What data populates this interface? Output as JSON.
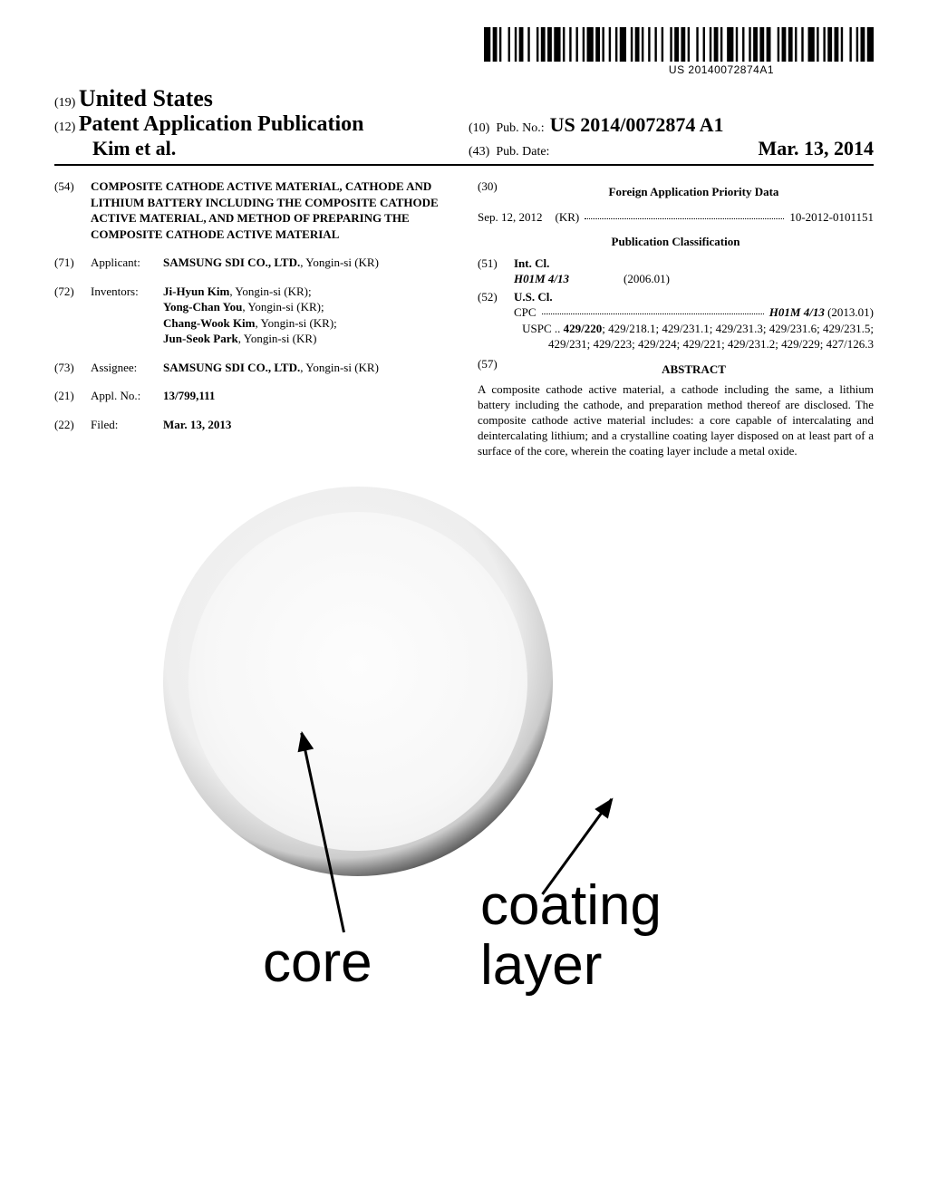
{
  "barcode": {
    "text": "US 20140072874A1",
    "bars": [
      3,
      1,
      2,
      1,
      1,
      3,
      1,
      2,
      1,
      1,
      2,
      2,
      1,
      3,
      1,
      1,
      2,
      1,
      2,
      1,
      3,
      1,
      1,
      2,
      1,
      2,
      1,
      2,
      1,
      1,
      3,
      1,
      2,
      1,
      1,
      2,
      1,
      2,
      1,
      1,
      3,
      2,
      1,
      1,
      2,
      1,
      1,
      2,
      1,
      2,
      1,
      2,
      1,
      3,
      1,
      1,
      2,
      1,
      2,
      1,
      1,
      3,
      1,
      2,
      1,
      2,
      1,
      1,
      2,
      1,
      1,
      2,
      3,
      1,
      1,
      2,
      1,
      2,
      1,
      1,
      2,
      1,
      2,
      1,
      2,
      3,
      1,
      1,
      2,
      1,
      2,
      1,
      1,
      2,
      1,
      2,
      3,
      1,
      1,
      2,
      1,
      1,
      2,
      1,
      2,
      1,
      1,
      3,
      1,
      2,
      1,
      1,
      2,
      1,
      3
    ]
  },
  "header": {
    "code19": "(19)",
    "country": "United States",
    "code12": "(12)",
    "doctype": "Patent Application Publication",
    "author": "Kim et al.",
    "code10": "(10)",
    "pubno_label": "Pub. No.:",
    "pubno": "US 2014/0072874 A1",
    "code43": "(43)",
    "pubdate_label": "Pub. Date:",
    "pubdate": "Mar. 13, 2014"
  },
  "left": {
    "f54": {
      "code": "(54)",
      "title": "COMPOSITE CATHODE ACTIVE MATERIAL, CATHODE AND LITHIUM BATTERY INCLUDING THE COMPOSITE CATHODE ACTIVE MATERIAL, AND METHOD OF PREPARING THE COMPOSITE CATHODE ACTIVE MATERIAL"
    },
    "f71": {
      "code": "(71)",
      "label": "Applicant:",
      "name": "SAMSUNG SDI CO., LTD.",
      "loc": ", Yongin-si (KR)"
    },
    "f72": {
      "code": "(72)",
      "label": "Inventors:",
      "inv": [
        {
          "name": "Ji-Hyun Kim",
          "loc": ", Yongin-si (KR);"
        },
        {
          "name": "Yong-Chan You",
          "loc": ", Yongin-si (KR);"
        },
        {
          "name": "Chang-Wook Kim",
          "loc": ", Yongin-si (KR);"
        },
        {
          "name": "Jun-Seok Park",
          "loc": ", Yongin-si (KR)"
        }
      ]
    },
    "f73": {
      "code": "(73)",
      "label": "Assignee:",
      "name": "SAMSUNG SDI CO., LTD.",
      "loc": ", Yongin-si (KR)"
    },
    "f21": {
      "code": "(21)",
      "label": "Appl. No.:",
      "val": "13/799,111"
    },
    "f22": {
      "code": "(22)",
      "label": "Filed:",
      "val": "Mar. 13, 2013"
    }
  },
  "right": {
    "f30": {
      "code": "(30)",
      "heading": "Foreign Application Priority Data",
      "date": "Sep. 12, 2012",
      "country": "(KR)",
      "num": "10-2012-0101151"
    },
    "pubclass_heading": "Publication Classification",
    "f51": {
      "code": "(51)",
      "label": "Int. Cl.",
      "class": "H01M 4/13",
      "year": "(2006.01)"
    },
    "f52": {
      "code": "(52)",
      "label": "U.S. Cl.",
      "cpc_label": "CPC",
      "cpc_val": "H01M 4/13",
      "cpc_year": "(2013.01)",
      "uspc_label": "USPC",
      "uspc_lead": "429/220",
      "uspc_rest": "; 429/218.1; 429/231.1; 429/231.3; 429/231.6; 429/231.5; 429/231; 429/223; 429/224; 429/221; 429/231.2; 429/229; 427/126.3"
    },
    "f57": {
      "code": "(57)",
      "heading": "ABSTRACT",
      "text": "A composite cathode active material, a cathode including the same, a lithium battery including the cathode, and preparation method thereof are disclosed. The composite cathode active material includes: a core capable of intercalating and deintercalating lithium; and a crystalline coating layer disposed on at least part of a surface of the core, wherein the coating layer include a metal oxide."
    }
  },
  "figure": {
    "core_label": "core",
    "coating_label_1": "coating",
    "coating_label_2": "layer"
  }
}
